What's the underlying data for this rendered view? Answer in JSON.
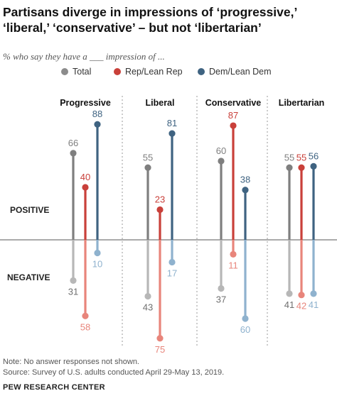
{
  "title": "Partisans diverge in impressions of ‘progressive,’ ‘liberal,’ ‘conservative’ – but not ‘libertarian’",
  "subtitle": "% who say they have a ___ impression of ...",
  "legend": [
    {
      "name": "Total",
      "color": "#8c8c8c"
    },
    {
      "name": "Rep/Lean Rep",
      "color": "#c9403a"
    },
    {
      "name": "Dem/Lean Dem",
      "color": "#3f6381"
    }
  ],
  "colors": {
    "total_positive": "#7f7f7f",
    "total_negative": "#b7b7b7",
    "rep_positive": "#c9403a",
    "rep_negative": "#e8857b",
    "dem_positive": "#3f6381",
    "dem_negative": "#8fb2ce",
    "baseline": "#555555",
    "divider": "#9a9a9a"
  },
  "row_labels": {
    "positive": "POSITIVE",
    "negative": "NEGATIVE"
  },
  "chart_data": {
    "type": "lollipop",
    "categories": [
      "Progressive",
      "Liberal",
      "Conservative",
      "Libertarian"
    ],
    "series": [
      {
        "name": "Total",
        "positive": [
          66,
          55,
          60,
          55
        ],
        "negative": [
          31,
          43,
          37,
          41
        ]
      },
      {
        "name": "Rep/Lean Rep",
        "positive": [
          40,
          23,
          87,
          55
        ],
        "negative": [
          58,
          75,
          11,
          42
        ]
      },
      {
        "name": "Dem/Lean Dem",
        "positive": [
          88,
          81,
          38,
          56
        ],
        "negative": [
          10,
          17,
          60,
          41
        ]
      }
    ]
  },
  "notes": [
    "Note: No answer responses not shown.",
    "Source: Survey of U.S. adults conducted April 29-May 13, 2019."
  ],
  "source_logo": "PEW RESEARCH CENTER"
}
